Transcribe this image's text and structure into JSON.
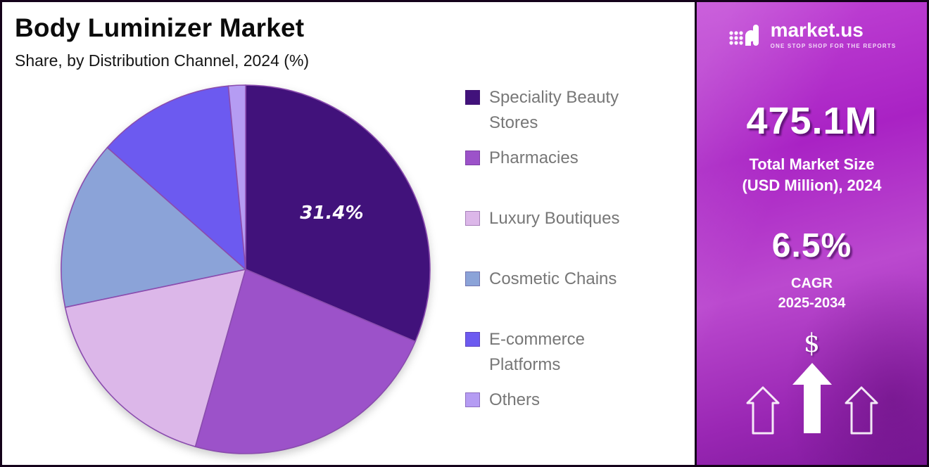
{
  "header": {
    "title": "Body Luminizer Market",
    "subtitle": "Share, by Distribution Channel, 2024 (%)"
  },
  "chart_data": {
    "type": "pie",
    "title": "Body Luminizer Market",
    "subtitle": "Share, by Distribution Channel, 2024 (%)",
    "unit": "percent share",
    "start_angle_deg": -90,
    "direction": "clockwise",
    "legend_position": "right",
    "slices": [
      {
        "label": "Speciality Beauty Stores",
        "value": 31.4,
        "color": "#41127b",
        "data_label": "31.4%"
      },
      {
        "label": "Pharmacies",
        "value": 23.0,
        "color": "#9c52c9",
        "data_label": ""
      },
      {
        "label": "Luxury Boutiques",
        "value": 17.3,
        "color": "#dcb7e9",
        "data_label": ""
      },
      {
        "label": "Cosmetic Chains",
        "value": 14.8,
        "color": "#8ba3d8",
        "data_label": ""
      },
      {
        "label": "E-commerce Platforms",
        "value": 12.0,
        "color": "#6c5af0",
        "data_label": ""
      },
      {
        "label": "Others",
        "value": 1.5,
        "color": "#b59cf3",
        "data_label": ""
      }
    ]
  },
  "sidebar": {
    "brand_name": "market.us",
    "brand_tagline": "ONE STOP SHOP FOR THE REPORTS",
    "market_size_value": "475.1M",
    "market_size_label_line1": "Total Market Size",
    "market_size_label_line2": "(USD Million), 2024",
    "cagr_value": "6.5%",
    "cagr_label_line1": "CAGR",
    "cagr_label_line2": "2025-2034",
    "currency_symbol": "$"
  }
}
